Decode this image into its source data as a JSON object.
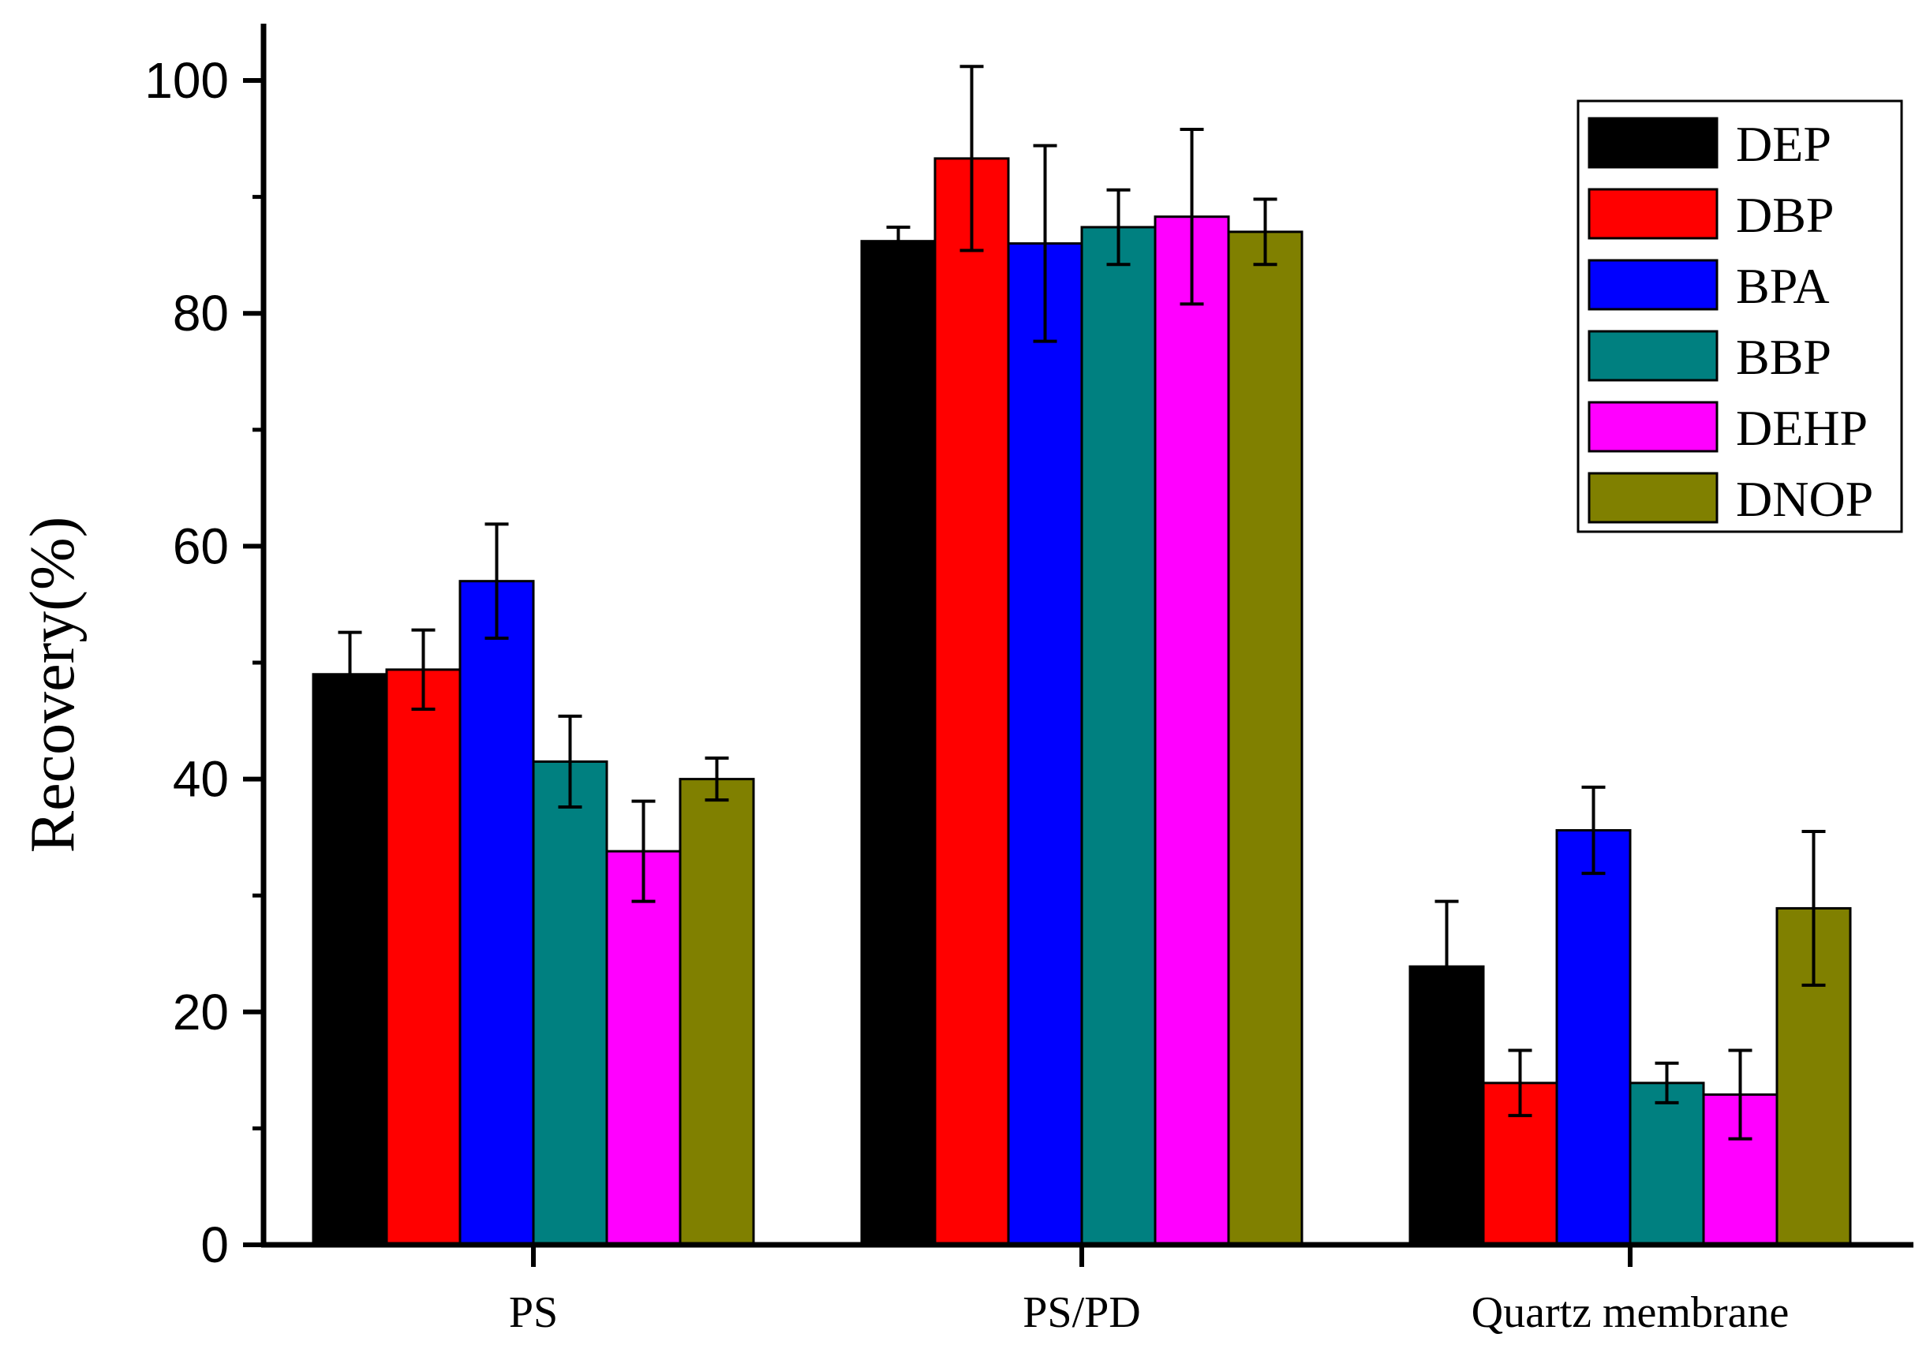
{
  "chart_data": {
    "type": "bar",
    "title": "",
    "xlabel": "",
    "ylabel": "Recovery(%)",
    "ylim": [
      0,
      100
    ],
    "yticks": [
      0,
      20,
      40,
      60,
      80,
      100
    ],
    "grid": false,
    "legend_position": "top-right",
    "categories": [
      "PS",
      "PS/PD",
      "Quartz membrane"
    ],
    "series": [
      {
        "name": "DEP",
        "color": "#000000",
        "values": [
          49.0,
          86.2,
          23.9
        ],
        "errors": [
          3.6,
          1.2,
          5.6
        ]
      },
      {
        "name": "DBP",
        "color": "#ff0000",
        "values": [
          49.4,
          93.3,
          13.9
        ],
        "errors": [
          3.4,
          7.9,
          2.8
        ]
      },
      {
        "name": "BPA",
        "color": "#0000ff",
        "values": [
          57.0,
          86.0,
          35.6
        ],
        "errors": [
          4.9,
          8.4,
          3.7
        ]
      },
      {
        "name": "BBP",
        "color": "#008080",
        "values": [
          41.5,
          87.4,
          13.9
        ],
        "errors": [
          3.9,
          3.2,
          1.7
        ]
      },
      {
        "name": "DEHP",
        "color": "#ff00ff",
        "values": [
          33.8,
          88.3,
          12.9
        ],
        "errors": [
          4.3,
          7.5,
          3.8
        ]
      },
      {
        "name": "DNOP",
        "color": "#808000",
        "values": [
          40.0,
          87.0,
          28.9
        ],
        "errors": [
          1.8,
          2.8,
          6.6
        ]
      }
    ]
  }
}
